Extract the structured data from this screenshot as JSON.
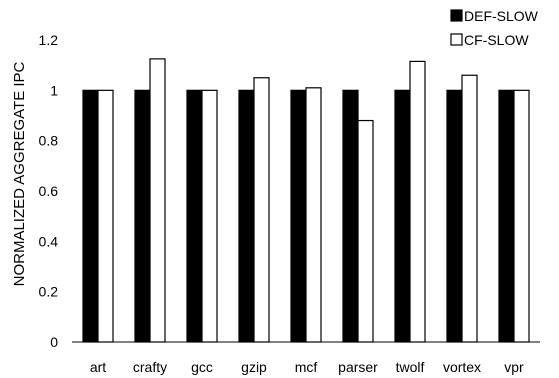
{
  "chart_data": {
    "type": "bar",
    "title": "",
    "xlabel": "",
    "ylabel": "NORMALIZED AGGREGATE IPC",
    "categories": [
      "art",
      "crafty",
      "gcc",
      "gzip",
      "mcf",
      "parser",
      "twolf",
      "vortex",
      "vpr"
    ],
    "series": [
      {
        "name": "DEF-SLOW",
        "color": "#000000",
        "values": [
          1.0,
          1.0,
          1.0,
          1.0,
          1.0,
          1.0,
          1.0,
          1.0,
          1.0
        ]
      },
      {
        "name": "CF-SLOW",
        "color": "#ffffff",
        "values": [
          1.0,
          1.125,
          1.0,
          1.05,
          1.01,
          0.88,
          1.115,
          1.06,
          1.0
        ]
      }
    ],
    "ylim": [
      0,
      1.2
    ],
    "yticks": [
      "0",
      "0.2",
      "0.4",
      "0.6",
      "0.8",
      "1",
      "1.2"
    ],
    "grid": false,
    "legend_position": "top-right"
  }
}
